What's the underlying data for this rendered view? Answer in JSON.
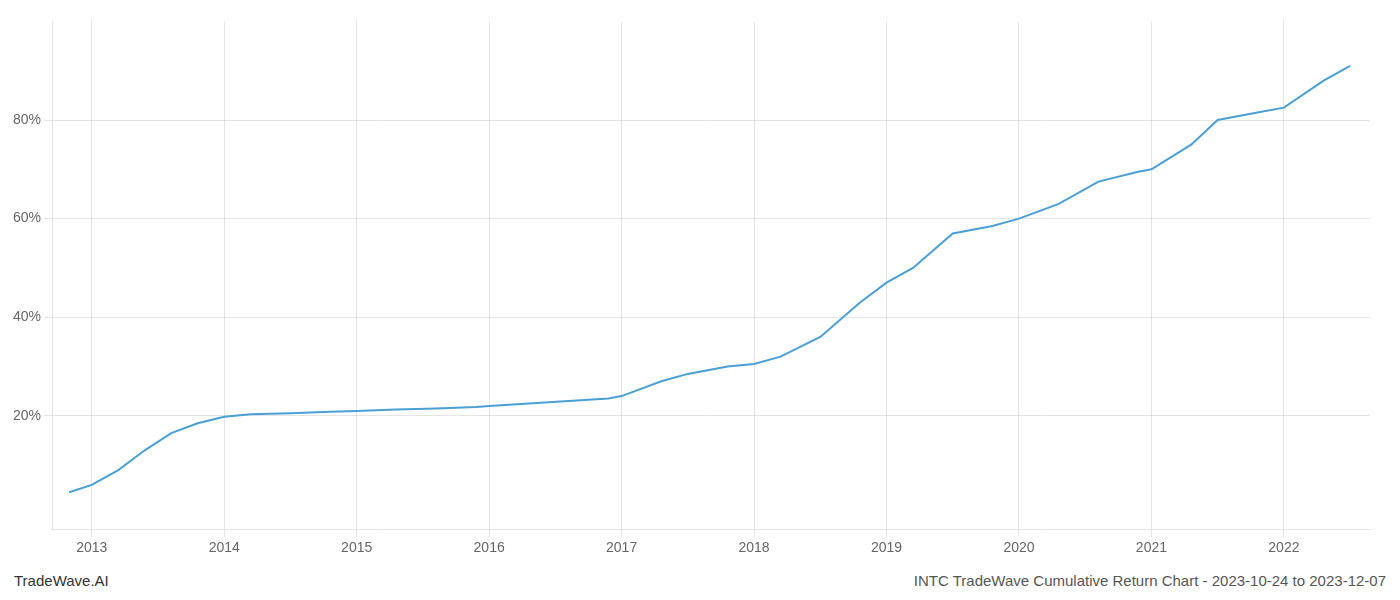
{
  "chart_data": {
    "type": "line",
    "title": "INTC TradeWave Cumulative Return Chart - 2023-10-24 to 2023-12-07",
    "annotations": [
      "TradeWave.AI"
    ],
    "color": "#4a9fd4",
    "grid": true,
    "x": [
      2012.83,
      2013.0,
      2013.2,
      2013.4,
      2013.6,
      2013.8,
      2014.0,
      2014.2,
      2014.5,
      2014.8,
      2015.0,
      2015.3,
      2015.6,
      2015.9,
      2016.0,
      2016.3,
      2016.6,
      2016.9,
      2017.0,
      2017.3,
      2017.5,
      2017.8,
      2018.0,
      2018.2,
      2018.5,
      2018.8,
      2019.0,
      2019.2,
      2019.5,
      2019.8,
      2020.0,
      2020.3,
      2020.6,
      2020.9,
      2021.0,
      2021.3,
      2021.5,
      2021.8,
      2022.0,
      2022.3,
      2022.5
    ],
    "values": [
      4.5,
      6.0,
      9.0,
      13.0,
      16.5,
      18.5,
      19.8,
      20.3,
      20.5,
      20.8,
      21.0,
      21.3,
      21.5,
      21.8,
      22.0,
      22.5,
      23.0,
      23.5,
      24.0,
      27.0,
      28.5,
      30.0,
      30.5,
      32.0,
      36.0,
      43.0,
      47.0,
      50.0,
      57.0,
      58.5,
      60.0,
      63.0,
      67.5,
      69.5,
      70.0,
      75.0,
      80.0,
      81.5,
      82.5,
      88.0,
      91.0
    ],
    "xlim": [
      2012.7,
      2022.65
    ],
    "xticks": [
      2013,
      2014,
      2015,
      2016,
      2017,
      2018,
      2019,
      2020,
      2021,
      2022
    ],
    "ylim": [
      -3,
      100
    ],
    "yticks": [
      {
        "value": 20,
        "label": "20%"
      },
      {
        "value": 40,
        "label": "40%"
      },
      {
        "value": 60,
        "label": "60%"
      },
      {
        "value": 80,
        "label": "80%"
      }
    ]
  }
}
